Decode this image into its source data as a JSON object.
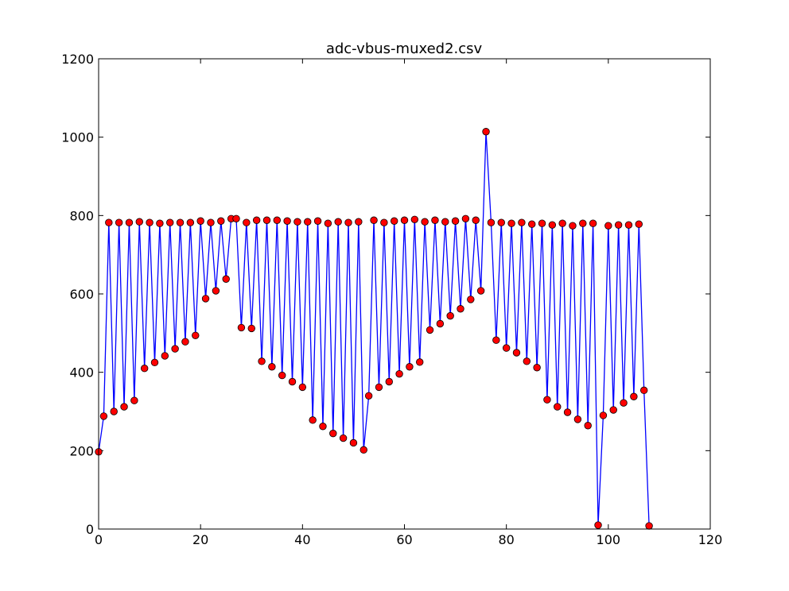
{
  "chart_data": {
    "type": "line",
    "title": "adc-vbus-muxed2.csv",
    "xlabel": "",
    "ylabel": "",
    "xlim": [
      0,
      120
    ],
    "ylim": [
      0,
      1200
    ],
    "x_ticks": [
      "0",
      "20",
      "40",
      "60",
      "80",
      "100",
      "120"
    ],
    "y_ticks": [
      "0",
      "200",
      "400",
      "600",
      "800",
      "1000",
      "1200"
    ],
    "grid": false,
    "legend": "none",
    "line_color": "#0000ff",
    "marker_color": "#ff0000",
    "series": [
      {
        "x": [
          0,
          1,
          2,
          3,
          4,
          5,
          6,
          7,
          8,
          9,
          10,
          11,
          12,
          13,
          14,
          15,
          16,
          17,
          18,
          19,
          20,
          21,
          22,
          23,
          24,
          25,
          26,
          27,
          28,
          29,
          30,
          31,
          32,
          33,
          34,
          35,
          36,
          37,
          38,
          39,
          40,
          41,
          42,
          43,
          44,
          45,
          46,
          47,
          48,
          49,
          50,
          51,
          52,
          53,
          54,
          55,
          56,
          57,
          58,
          59,
          60,
          61,
          62,
          63,
          64,
          65,
          66,
          67,
          68,
          69,
          70,
          71,
          72,
          73,
          74,
          75,
          76,
          77,
          78,
          79,
          80,
          81,
          82,
          83,
          84,
          85,
          86,
          87,
          88,
          89,
          90,
          91,
          92,
          93,
          94,
          95,
          96,
          97,
          98,
          99,
          100,
          101,
          102,
          103,
          104,
          105,
          106,
          107,
          108
        ],
        "y": [
          197,
          288,
          782,
          300,
          782,
          312,
          782,
          328,
          784,
          410,
          782,
          425,
          780,
          442,
          782,
          460,
          782,
          478,
          782,
          494,
          786,
          588,
          782,
          608,
          786,
          638,
          792,
          792,
          514,
          782,
          512,
          788,
          428,
          788,
          414,
          788,
          392,
          786,
          376,
          784,
          362,
          784,
          278,
          786,
          262,
          780,
          244,
          784,
          232,
          782,
          220,
          784,
          202,
          340,
          788,
          362,
          782,
          376,
          786,
          396,
          788,
          414,
          790,
          426,
          784,
          508,
          788,
          524,
          784,
          544,
          786,
          562,
          792,
          586,
          788,
          608,
          1014,
          782,
          482,
          782,
          462,
          780,
          450,
          782,
          428,
          778,
          412,
          780,
          330,
          776,
          312,
          780,
          298,
          774,
          280,
          780,
          264,
          780,
          10,
          290,
          774,
          304,
          776,
          322,
          776,
          338,
          778,
          354,
          8
        ]
      }
    ]
  }
}
